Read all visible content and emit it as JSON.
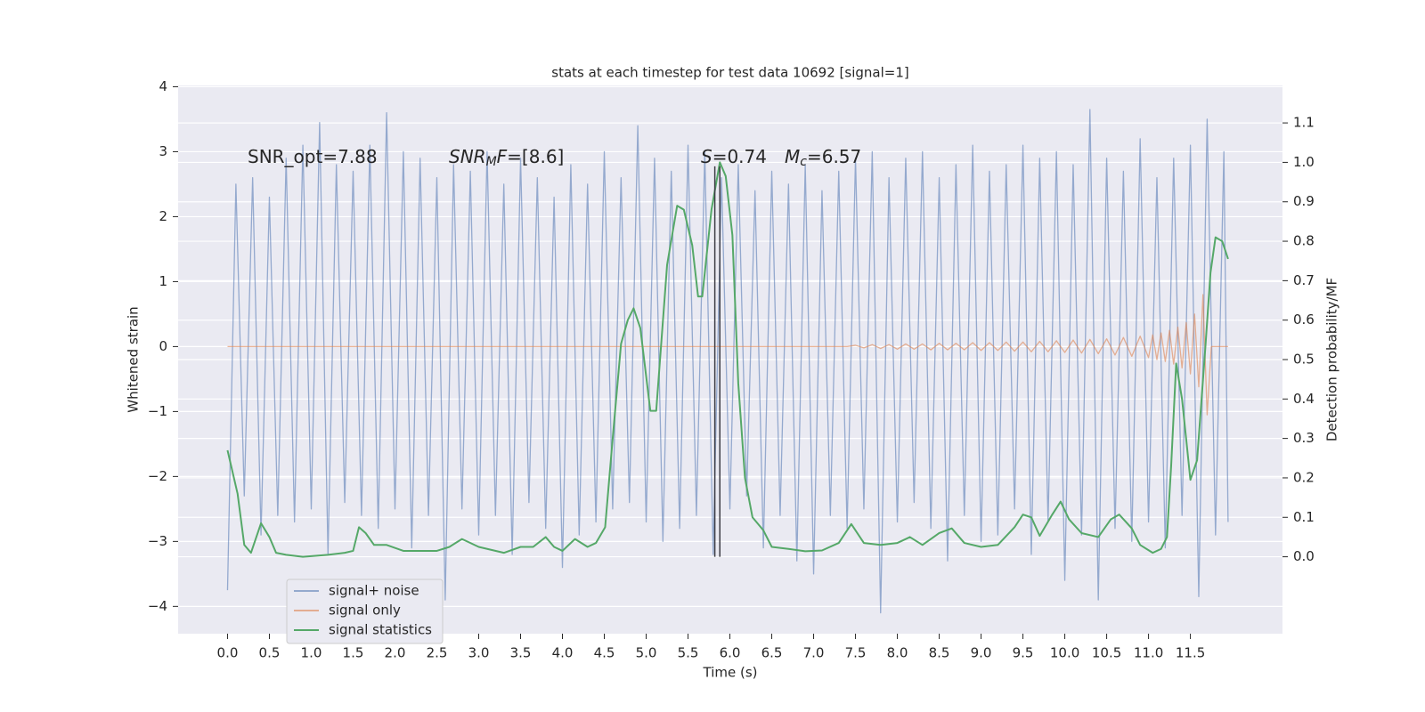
{
  "chart_data": {
    "type": "line",
    "title": "stats at each timestep for test data 10692 [signal=1]",
    "xlabel": "Time (s)",
    "ylabel": "Whitened strain",
    "y2label": "Detection probability/MF",
    "xlim": [
      -0.59,
      12.6
    ],
    "ylim": [
      -4.42,
      4.02
    ],
    "y2lim": [
      -0.195,
      1.195
    ],
    "xticks": [
      {
        "value": 0,
        "label": "0.0"
      },
      0.5,
      {
        "value": 1,
        "label": "1.0"
      },
      1.5,
      {
        "value": 2,
        "label": "2.0"
      },
      2.5,
      {
        "value": 3,
        "label": "3.0"
      },
      3.5,
      {
        "value": 4,
        "label": "4.0"
      },
      4.5,
      {
        "value": 5,
        "label": "5.0"
      },
      5.5,
      {
        "value": 6,
        "label": "6.0"
      },
      6.5,
      {
        "value": 7,
        "label": "7.0"
      },
      7.5,
      {
        "value": 8,
        "label": "8.0"
      },
      8.5,
      {
        "value": 9,
        "label": "9.0"
      },
      9.5,
      {
        "value": 10,
        "label": "10.0"
      },
      10.5,
      {
        "value": 11,
        "label": "11.0"
      },
      11.5
    ],
    "yticks": [
      {
        "value": -4,
        "label": "−4"
      },
      {
        "value": -3,
        "label": "−3"
      },
      {
        "value": -2,
        "label": "−2"
      },
      {
        "value": -1,
        "label": "−1"
      },
      0,
      1,
      2,
      3,
      4
    ],
    "y2ticks": [
      {
        "value": 0,
        "label": "0.0"
      },
      0.1,
      0.2,
      0.3,
      0.4,
      0.5,
      0.6,
      0.7,
      0.8,
      0.9,
      {
        "value": 1,
        "label": "1.0"
      },
      1.1
    ],
    "grid": true,
    "legend": "lower left",
    "series": [
      {
        "name": "signal+ noise",
        "color": "#4c72b0",
        "alpha": 0.55,
        "x": [
          0,
          0.1,
          0.2,
          0.3,
          0.4,
          0.5,
          0.6,
          0.7,
          0.8,
          0.9,
          1,
          1.1,
          1.2,
          1.3,
          1.4,
          1.5,
          1.6,
          1.7,
          1.8,
          1.9,
          2,
          2.1,
          2.2,
          2.3,
          2.4,
          2.5,
          2.6,
          2.7,
          2.8,
          2.9,
          3,
          3.1,
          3.2,
          3.3,
          3.4,
          3.5,
          3.6,
          3.7,
          3.8,
          3.9,
          4,
          4.1,
          4.2,
          4.3,
          4.4,
          4.5,
          4.6,
          4.7,
          4.8,
          4.9,
          5,
          5.1,
          5.2,
          5.3,
          5.4,
          5.5,
          5.6,
          5.7,
          5.8,
          5.9,
          6,
          6.1,
          6.2,
          6.3,
          6.4,
          6.5,
          6.6,
          6.7,
          6.8,
          6.9,
          7,
          7.1,
          7.2,
          7.3,
          7.4,
          7.5,
          7.6,
          7.7,
          7.8,
          7.9,
          8,
          8.1,
          8.2,
          8.3,
          8.4,
          8.5,
          8.6,
          8.7,
          8.8,
          8.9,
          9,
          9.1,
          9.2,
          9.3,
          9.4,
          9.5,
          9.6,
          9.7,
          9.8,
          9.9,
          10,
          10.1,
          10.2,
          10.3,
          10.4,
          10.5,
          10.6,
          10.7,
          10.8,
          10.9,
          11,
          11.1,
          11.2,
          11.3,
          11.4,
          11.5,
          11.6,
          11.7,
          11.8,
          11.9,
          11.95
        ],
        "values": [
          -3.75,
          2.5,
          -2.3,
          2.6,
          -2.9,
          2.3,
          -2.6,
          2.9,
          -2.7,
          3.1,
          -2.5,
          3.45,
          -3.2,
          2.8,
          -2.4,
          2.7,
          -2.6,
          3.1,
          -2.8,
          3.6,
          -2.5,
          3.0,
          -3.1,
          2.9,
          -2.6,
          2.6,
          -3.9,
          2.8,
          -2.5,
          2.7,
          -2.9,
          3.0,
          -2.6,
          2.5,
          -3.2,
          2.9,
          -2.4,
          2.6,
          -2.8,
          2.3,
          -3.4,
          2.8,
          -2.9,
          2.5,
          -2.7,
          3.0,
          -2.5,
          2.6,
          -2.4,
          3.4,
          -2.7,
          2.9,
          -3.0,
          2.7,
          -2.8,
          3.1,
          -2.6,
          3.0,
          -3.2,
          2.6,
          -2.5,
          2.8,
          -2.3,
          2.4,
          -3.1,
          2.7,
          -2.6,
          2.5,
          -3.3,
          2.8,
          -3.5,
          2.4,
          -2.6,
          2.7,
          -2.8,
          2.9,
          -2.5,
          3.0,
          -4.1,
          2.6,
          -2.7,
          2.9,
          -2.4,
          3.0,
          -2.8,
          2.6,
          -3.3,
          2.8,
          -2.6,
          3.1,
          -3.0,
          2.7,
          -2.9,
          2.8,
          -2.5,
          3.1,
          -3.2,
          2.9,
          -2.7,
          3.0,
          -3.6,
          2.8,
          -2.9,
          3.65,
          -3.9,
          2.9,
          -2.8,
          2.7,
          -3.0,
          3.2,
          -2.7,
          2.6,
          -3.1,
          2.9,
          -2.6,
          3.1,
          -3.85,
          3.5,
          -2.9,
          3.0,
          -2.7
        ]
      },
      {
        "name": "signal only",
        "color": "#dd8452",
        "alpha": 0.6,
        "x": [
          0,
          7.4,
          7.5,
          7.6,
          7.7,
          7.8,
          7.9,
          8,
          8.1,
          8.2,
          8.3,
          8.4,
          8.5,
          8.6,
          8.7,
          8.8,
          8.9,
          9,
          9.1,
          9.2,
          9.3,
          9.4,
          9.5,
          9.6,
          9.7,
          9.8,
          9.9,
          10,
          10.1,
          10.2,
          10.3,
          10.4,
          10.5,
          10.6,
          10.7,
          10.8,
          10.9,
          11,
          11.05,
          11.1,
          11.15,
          11.2,
          11.25,
          11.3,
          11.35,
          11.4,
          11.45,
          11.5,
          11.55,
          11.6,
          11.65,
          11.7,
          11.75,
          11.95
        ],
        "values": [
          0,
          0,
          0.02,
          -0.02,
          0.03,
          -0.03,
          0.03,
          -0.04,
          0.04,
          -0.04,
          0.04,
          -0.05,
          0.05,
          -0.05,
          0.05,
          -0.05,
          0.06,
          -0.06,
          0.06,
          -0.06,
          0.07,
          -0.07,
          0.07,
          -0.08,
          0.08,
          -0.08,
          0.09,
          -0.09,
          0.1,
          -0.1,
          0.11,
          -0.11,
          0.12,
          -0.13,
          0.14,
          -0.15,
          0.16,
          -0.17,
          0.18,
          -0.2,
          0.21,
          -0.23,
          0.25,
          -0.27,
          0.3,
          -0.33,
          0.37,
          -0.42,
          0.5,
          -0.62,
          0.8,
          -1.05,
          0,
          0
        ]
      },
      {
        "name": "signal statistics",
        "color": "#55a868",
        "alpha": 1,
        "axis": "y2",
        "x": [
          0,
          0.12,
          0.2,
          0.28,
          0.4,
          0.5,
          0.58,
          0.7,
          0.9,
          1.2,
          1.4,
          1.5,
          1.57,
          1.65,
          1.75,
          1.9,
          2.1,
          2.3,
          2.5,
          2.65,
          2.8,
          3.0,
          3.3,
          3.5,
          3.65,
          3.8,
          3.9,
          4.0,
          4.15,
          4.3,
          4.4,
          4.51,
          4.6,
          4.7,
          4.78,
          4.85,
          4.93,
          5.05,
          5.12,
          5.25,
          5.37,
          5.45,
          5.55,
          5.62,
          5.67,
          5.78,
          5.88,
          5.95,
          6.03,
          6.1,
          6.18,
          6.27,
          6.4,
          6.5,
          6.7,
          6.9,
          7.1,
          7.3,
          7.45,
          7.6,
          7.8,
          8.0,
          8.15,
          8.3,
          8.5,
          8.65,
          8.8,
          9.0,
          9.2,
          9.4,
          9.5,
          9.6,
          9.7,
          9.85,
          9.95,
          10.05,
          10.2,
          10.4,
          10.55,
          10.65,
          10.8,
          10.9,
          11.05,
          11.15,
          11.22,
          11.27,
          11.33,
          11.4,
          11.5,
          11.58,
          11.68,
          11.74,
          11.8,
          11.88,
          11.95
        ],
        "values": [
          0.27,
          0.16,
          0.03,
          0.01,
          0.085,
          0.05,
          0.01,
          0.005,
          0,
          0.005,
          0.01,
          0.015,
          0.075,
          0.06,
          0.03,
          0.03,
          0.015,
          0.015,
          0.015,
          0.025,
          0.045,
          0.025,
          0.01,
          0.025,
          0.025,
          0.05,
          0.025,
          0.015,
          0.045,
          0.025,
          0.035,
          0.075,
          0.3,
          0.54,
          0.6,
          0.63,
          0.58,
          0.37,
          0.37,
          0.74,
          0.89,
          0.88,
          0.79,
          0.66,
          0.66,
          0.88,
          1.0,
          0.965,
          0.815,
          0.44,
          0.2,
          0.1,
          0.067,
          0.025,
          0.02,
          0.014,
          0.016,
          0.035,
          0.083,
          0.035,
          0.03,
          0.035,
          0.05,
          0.03,
          0.06,
          0.072,
          0.035,
          0.025,
          0.03,
          0.075,
          0.107,
          0.1,
          0.053,
          0.107,
          0.14,
          0.095,
          0.06,
          0.05,
          0.095,
          0.107,
          0.072,
          0.03,
          0.01,
          0.02,
          0.05,
          0.23,
          0.49,
          0.4,
          0.195,
          0.245,
          0.535,
          0.72,
          0.81,
          0.8,
          0.755
        ]
      }
    ],
    "vlines": {
      "x": [
        5.82,
        5.88
      ],
      "ymin": 0,
      "ymax": 0.99,
      "axis": "y2",
      "color": "#3d3d45"
    },
    "annotations": [
      [
        {
          "text": "SNR_opt=7.88"
        }
      ],
      [
        {
          "text": "SNR",
          "italic": true
        },
        {
          "text": "M",
          "italic": true,
          "sub": true
        },
        {
          "text": "F",
          "italic": true
        },
        {
          "text": "=[8.6]"
        }
      ],
      [
        {
          "text": "S",
          "italic": true
        },
        {
          "text": "=0.74"
        }
      ],
      [
        {
          "text": "M",
          "italic": true
        },
        {
          "text": "c",
          "italic": true,
          "sub": true
        },
        {
          "text": "=6.57"
        }
      ]
    ]
  }
}
